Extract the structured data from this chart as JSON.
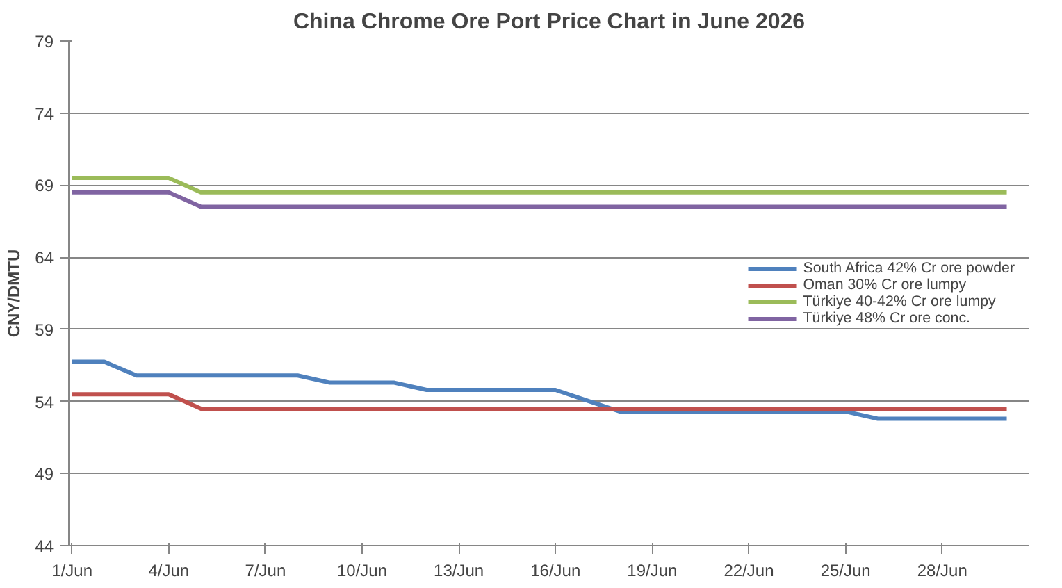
{
  "chart_data": {
    "type": "line",
    "title": "China Chrome Ore Port Price Chart in June 2026",
    "ylabel": "CNY/DMTU",
    "categories": [
      "1/Jun",
      null,
      null,
      "4/Jun",
      null,
      null,
      "7/Jun",
      null,
      null,
      "10/Jun",
      null,
      null,
      "13/Jun",
      null,
      null,
      "16/Jun",
      null,
      null,
      "19/Jun",
      null,
      null,
      "22/Jun",
      null,
      null,
      "25/Jun",
      null,
      null,
      "28/Jun",
      null,
      null
    ],
    "series": [
      {
        "name": "South Africa 42% Cr ore powder",
        "color": "#4f81bd",
        "values": [
          56.75,
          56.75,
          55.8,
          55.8,
          55.8,
          55.8,
          55.8,
          55.8,
          55.3,
          55.3,
          55.3,
          54.8,
          54.8,
          54.8,
          54.8,
          54.8,
          54.05,
          53.3,
          53.3,
          53.3,
          53.3,
          53.3,
          53.3,
          53.3,
          53.3,
          52.8,
          52.8,
          52.8,
          52.8,
          52.8
        ]
      },
      {
        "name": "Oman 30% Cr ore lumpy",
        "color": "#c0504d",
        "values": [
          54.5,
          54.5,
          54.5,
          54.5,
          53.5,
          53.5,
          53.5,
          53.5,
          53.5,
          53.5,
          53.5,
          53.5,
          53.5,
          53.5,
          53.5,
          53.5,
          53.5,
          53.5,
          53.5,
          53.5,
          53.5,
          53.5,
          53.5,
          53.5,
          53.5,
          53.5,
          53.5,
          53.5,
          53.5,
          53.5
        ]
      },
      {
        "name": "Türkiye 40-42% Cr ore lumpy",
        "color": "#9bbb59",
        "values": [
          69.5,
          69.5,
          69.5,
          69.5,
          68.5,
          68.5,
          68.5,
          68.5,
          68.5,
          68.5,
          68.5,
          68.5,
          68.5,
          68.5,
          68.5,
          68.5,
          68.5,
          68.5,
          68.5,
          68.5,
          68.5,
          68.5,
          68.5,
          68.5,
          68.5,
          68.5,
          68.5,
          68.5,
          68.5,
          68.5
        ]
      },
      {
        "name": "Türkiye 48% Cr ore conc.",
        "color": "#8064a2",
        "values": [
          68.5,
          68.5,
          68.5,
          68.5,
          67.5,
          67.5,
          67.5,
          67.5,
          67.5,
          67.5,
          67.5,
          67.5,
          67.5,
          67.5,
          67.5,
          67.5,
          67.5,
          67.5,
          67.5,
          67.5,
          67.5,
          67.5,
          67.5,
          67.5,
          67.5,
          67.5,
          67.5,
          67.5,
          67.5,
          67.5
        ]
      }
    ],
    "ylim": [
      44,
      79
    ],
    "yticks": [
      44,
      49,
      54,
      59,
      64,
      69,
      74,
      79
    ],
    "grid": "y",
    "legend": "right",
    "marker": "none",
    "line_style": "solid"
  }
}
